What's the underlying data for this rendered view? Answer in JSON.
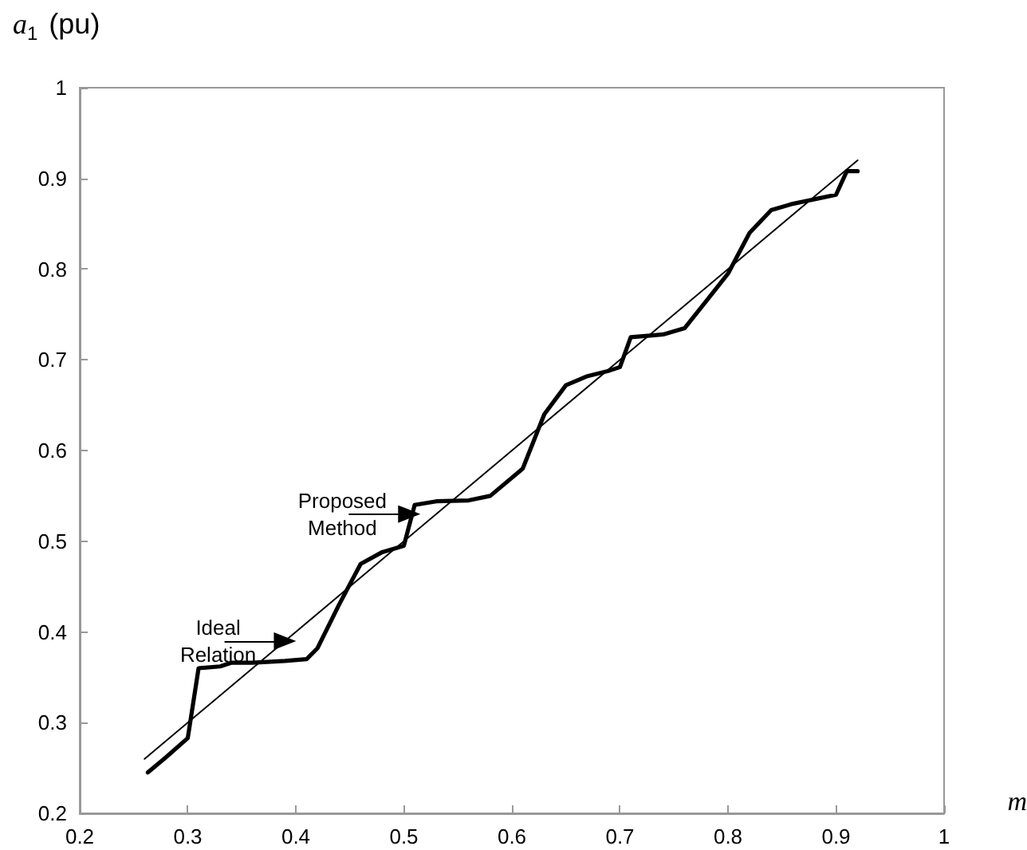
{
  "chart_data": {
    "type": "line",
    "xlabel": "m",
    "ylabel": "a$_{1}$ (pu)",
    "xlim": [
      0.2,
      1
    ],
    "xticks": [
      0.2,
      0.3,
      0.4,
      0.5,
      0.6,
      0.7,
      0.8,
      0.9,
      1
    ],
    "ylim": [
      0.2,
      1
    ],
    "yticks": [
      0.2,
      0.3,
      0.4,
      0.5,
      0.6,
      0.7,
      0.8,
      0.9,
      1
    ],
    "grid": false,
    "marker": "none",
    "line_style": "solid",
    "series": [
      {
        "color": "#000000",
        "x": [
          0.26,
          0.92
        ],
        "values": [
          0.26,
          0.92
        ]
      },
      {
        "color": "#000000",
        "x": [
          0.263,
          0.28,
          0.3,
          0.31,
          0.33,
          0.34,
          0.36,
          0.39,
          0.41,
          0.42,
          0.44,
          0.46,
          0.48,
          0.5,
          0.51,
          0.53,
          0.56,
          0.58,
          0.61,
          0.63,
          0.65,
          0.67,
          0.69,
          0.7,
          0.71,
          0.73,
          0.74,
          0.76,
          0.78,
          0.8,
          0.82,
          0.84,
          0.86,
          0.88,
          0.9,
          0.91,
          0.92
        ],
        "values": [
          0.245,
          0.262,
          0.283,
          0.36,
          0.362,
          0.366,
          0.366,
          0.368,
          0.37,
          0.382,
          0.43,
          0.475,
          0.488,
          0.495,
          0.54,
          0.544,
          0.545,
          0.55,
          0.58,
          0.64,
          0.672,
          0.682,
          0.688,
          0.692,
          0.725,
          0.727,
          0.728,
          0.735,
          0.765,
          0.795,
          0.84,
          0.865,
          0.872,
          0.877,
          0.882,
          0.908,
          0.908
        ]
      }
    ],
    "annotations": [
      {
        "text": "Ideal Relation",
        "x": 0.39,
        "y": 0.39
      },
      {
        "text": "Proposed Method",
        "x": 0.505,
        "y": 0.53
      }
    ]
  }
}
